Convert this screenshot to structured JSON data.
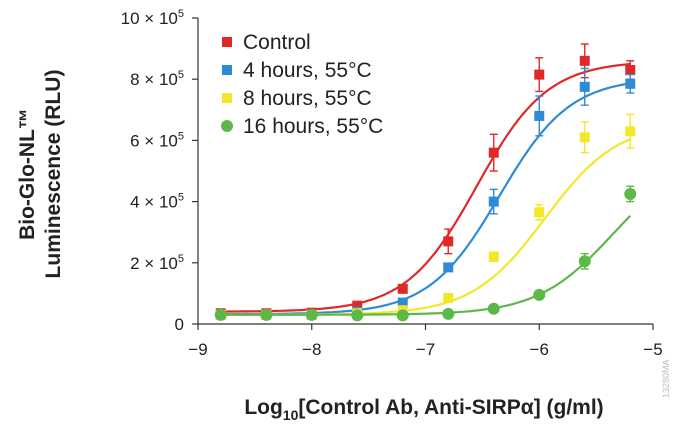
{
  "chart_data": {
    "type": "scatter",
    "xlabel_main": "Log",
    "xlabel_sub": "10",
    "xlabel_rest": "[Control Ab, Anti-SIRPα] (g/ml)",
    "ylabel_line1": "Bio-Glo-NL™",
    "ylabel_line2": "Luminescence (RLU)",
    "xlim": [
      -9,
      -5
    ],
    "ylim": [
      0,
      1000000
    ],
    "x_ticks": [
      {
        "value": -9,
        "label": "−9"
      },
      {
        "value": -8,
        "label": "−8"
      },
      {
        "value": -7,
        "label": "−7"
      },
      {
        "value": -6,
        "label": "−6"
      },
      {
        "value": -5,
        "label": "−5"
      }
    ],
    "y_ticks": [
      {
        "value": 0,
        "base": "0",
        "exp": ""
      },
      {
        "value": 200000,
        "base": "2 × 10",
        "exp": "5"
      },
      {
        "value": 400000,
        "base": "4 × 10",
        "exp": "5"
      },
      {
        "value": 600000,
        "base": "6 × 10",
        "exp": "5"
      },
      {
        "value": 800000,
        "base": "8 × 10",
        "exp": "5"
      },
      {
        "value": 1000000,
        "base": "10 × 10",
        "exp": "5"
      }
    ],
    "legend_position": "top-left",
    "watermark": "13280MA",
    "series": [
      {
        "name": "Control",
        "marker": "square",
        "color": "#e02828",
        "x": [
          -8.8,
          -8.4,
          -8.0,
          -7.6,
          -7.2,
          -6.8,
          -6.4,
          -6.0,
          -5.6,
          -5.2
        ],
        "y": [
          35000,
          35000,
          37000,
          60000,
          115000,
          270000,
          560000,
          815000,
          860000,
          830000
        ],
        "err": [
          6000,
          6000,
          6000,
          8000,
          12000,
          40000,
          60000,
          55000,
          55000,
          30000
        ],
        "fit": {
          "bottom": 40000,
          "top": 860000,
          "ec50": -6.55,
          "hill": 1.4
        }
      },
      {
        "name": "4 hours, 55°C",
        "marker": "square",
        "color": "#2f8bd6",
        "x": [
          -8.8,
          -8.4,
          -8.0,
          -7.6,
          -7.2,
          -6.8,
          -6.4,
          -6.0,
          -5.6,
          -5.2
        ],
        "y": [
          30000,
          30000,
          30000,
          40000,
          70000,
          185000,
          400000,
          680000,
          775000,
          785000
        ],
        "err": [
          5000,
          5000,
          5000,
          6000,
          8000,
          12000,
          40000,
          65000,
          60000,
          30000
        ],
        "fit": {
          "bottom": 32000,
          "top": 805000,
          "ec50": -6.35,
          "hill": 1.4
        }
      },
      {
        "name": "8 hours, 55°C",
        "marker": "square",
        "color": "#f2e829",
        "x": [
          -8.8,
          -8.4,
          -8.0,
          -7.6,
          -7.2,
          -6.8,
          -6.4,
          -6.0,
          -5.6,
          -5.2
        ],
        "y": [
          30000,
          30000,
          30000,
          35000,
          45000,
          85000,
          220000,
          365000,
          610000,
          630000
        ],
        "err": [
          5000,
          5000,
          5000,
          5000,
          6000,
          8000,
          15000,
          25000,
          50000,
          55000
        ],
        "fit": {
          "bottom": 30000,
          "top": 660000,
          "ec50": -5.95,
          "hill": 1.35
        }
      },
      {
        "name": "16 hours, 55°C",
        "marker": "circle",
        "color": "#5cb848",
        "x": [
          -8.8,
          -8.4,
          -8.0,
          -7.6,
          -7.2,
          -6.8,
          -6.4,
          -6.0,
          -5.6,
          -5.2
        ],
        "y": [
          30000,
          30000,
          30000,
          28000,
          28000,
          33000,
          50000,
          95000,
          205000,
          425000
        ],
        "err": [
          4000,
          4000,
          4000,
          4000,
          4000,
          5000,
          6000,
          10000,
          25000,
          25000
        ],
        "fit": {
          "bottom": 30000,
          "top": 560000,
          "ec50": -5.35,
          "hill": 1.3
        }
      }
    ]
  }
}
